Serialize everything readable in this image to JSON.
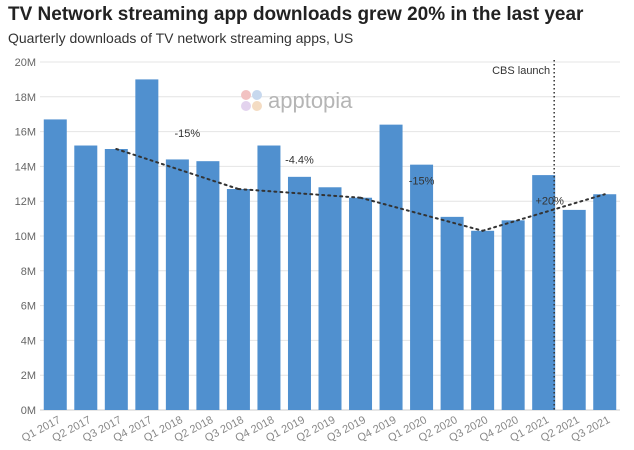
{
  "header": {
    "title": "TV Network streaming app downloads grew 20% in the last year",
    "subtitle": "Quarterly downloads of TV network streaming apps, US"
  },
  "watermark": {
    "text": "apptopia",
    "icon": "apptopia-logo-dots-icon"
  },
  "colors": {
    "bar": "#5090cf",
    "trend": "#333333",
    "grid": "#e4e4e4"
  },
  "chart_data": {
    "type": "bar",
    "title": "TV Network streaming app downloads grew 20% in the last year",
    "subtitle": "Quarterly downloads of TV network streaming apps, US",
    "xlabel": "",
    "ylabel": "",
    "ylim": [
      0,
      20
    ],
    "y_unit": "M",
    "yticks": [
      "0M",
      "2M",
      "4M",
      "6M",
      "8M",
      "10M",
      "12M",
      "14M",
      "16M",
      "18M",
      "20M"
    ],
    "grid": true,
    "categories": [
      "Q1 2017",
      "Q2 2017",
      "Q3 2017",
      "Q4 2017",
      "Q1 2018",
      "Q2 2018",
      "Q3 2018",
      "Q4 2018",
      "Q1 2019",
      "Q2 2019",
      "Q3 2019",
      "Q4 2019",
      "Q1 2020",
      "Q2 2020",
      "Q3 2020",
      "Q4 2020",
      "Q1 2021",
      "Q2 2021",
      "Q3 2021"
    ],
    "values": [
      16.7,
      15.2,
      15.0,
      19.0,
      14.4,
      14.3,
      12.7,
      15.2,
      13.4,
      12.8,
      12.2,
      16.4,
      14.1,
      11.1,
      10.3,
      10.9,
      13.5,
      11.5,
      12.4
    ],
    "trend_segments": [
      {
        "from": "Q3 2017",
        "to": "Q3 2018",
        "from_value": 15.0,
        "to_value": 12.7,
        "label": "-15%"
      },
      {
        "from": "Q3 2018",
        "to": "Q3 2019",
        "from_value": 12.7,
        "to_value": 12.2,
        "label": "-4.4%"
      },
      {
        "from": "Q3 2019",
        "to": "Q3 2020",
        "from_value": 12.2,
        "to_value": 10.3,
        "label": "-15%"
      },
      {
        "from": "Q3 2020",
        "to": "Q3 2021",
        "from_value": 10.3,
        "to_value": 12.4,
        "label": "+20%"
      }
    ],
    "annotations": [
      {
        "text": "CBS launch",
        "at": "Q1 2021"
      }
    ]
  }
}
